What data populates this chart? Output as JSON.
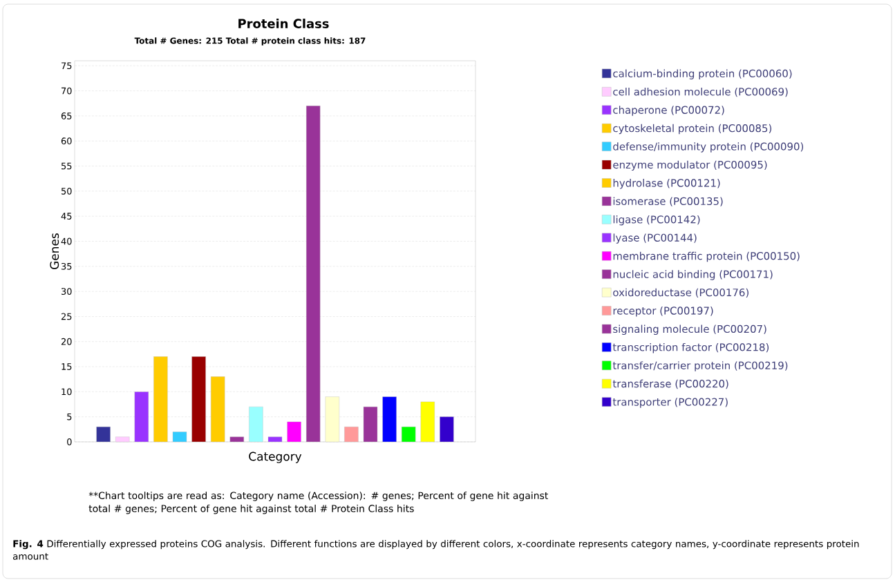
{
  "chart_data": {
    "type": "bar",
    "title": "Protein Class",
    "subtitle": "Total # Genes: 215    Total # protein class hits: 187",
    "xlabel": "Category",
    "ylabel": "Genes",
    "categories": [
      null
    ],
    "series": [
      {
        "name": "calcium-binding protein (PC00060)",
        "color": "#333399",
        "values": [
          3
        ]
      },
      {
        "name": "cell adhesion molecule (PC00069)",
        "color": "#ffccff",
        "values": [
          1
        ]
      },
      {
        "name": "chaperone (PC00072)",
        "color": "#9933ff",
        "values": [
          10
        ]
      },
      {
        "name": "cytoskeletal protein (PC00085)",
        "color": "#ffcc00",
        "values": [
          17
        ]
      },
      {
        "name": "defense/immunity protein (PC00090)",
        "color": "#33ccff",
        "values": [
          2
        ]
      },
      {
        "name": "enzyme modulator (PC00095)",
        "color": "#990000",
        "values": [
          17
        ]
      },
      {
        "name": "hydrolase (PC00121)",
        "color": "#ffcc00",
        "values": [
          13
        ]
      },
      {
        "name": "isomerase (PC00135)",
        "color": "#993399",
        "values": [
          1
        ]
      },
      {
        "name": "ligase (PC00142)",
        "color": "#99ffff",
        "values": [
          7
        ]
      },
      {
        "name": "lyase (PC00144)",
        "color": "#9933ff",
        "values": [
          1
        ]
      },
      {
        "name": "membrane traffic protein (PC00150)",
        "color": "#ff00ff",
        "values": [
          4
        ]
      },
      {
        "name": "nucleic acid binding (PC00171)",
        "color": "#993399",
        "values": [
          67
        ]
      },
      {
        "name": "oxidoreductase (PC00176)",
        "color": "#ffffcc",
        "values": [
          9
        ]
      },
      {
        "name": "receptor (PC00197)",
        "color": "#ff9999",
        "values": [
          3
        ]
      },
      {
        "name": "signaling molecule (PC00207)",
        "color": "#993399",
        "values": [
          7
        ]
      },
      {
        "name": "transcription factor (PC00218)",
        "color": "#0000ff",
        "values": [
          9
        ]
      },
      {
        "name": "transfer/carrier protein (PC00219)",
        "color": "#00ff00",
        "values": [
          3
        ]
      },
      {
        "name": "transferase (PC00220)",
        "color": "#ffff00",
        "values": [
          8
        ]
      },
      {
        "name": "transporter (PC00227)",
        "color": "#3300cc",
        "values": [
          5
        ]
      }
    ],
    "ylim": [
      0,
      76
    ],
    "yticks": [
      0,
      5,
      10,
      15,
      20,
      25,
      30,
      35,
      40,
      45,
      50,
      55,
      60,
      65,
      70,
      75
    ],
    "grid": "y",
    "legend": "right",
    "annotations": [
      "**Chart tooltips are read as: Category name (Accession): # genes; Percent of gene hit against total # genes; Percent of gene hit against total # Protein Class hits",
      "**Fig. 4** Differentially expressed proteins COG analysis. Different functions are displayed by different colors, x-coordinate represents category names, y-coordinate represents protein amount"
    ]
  }
}
